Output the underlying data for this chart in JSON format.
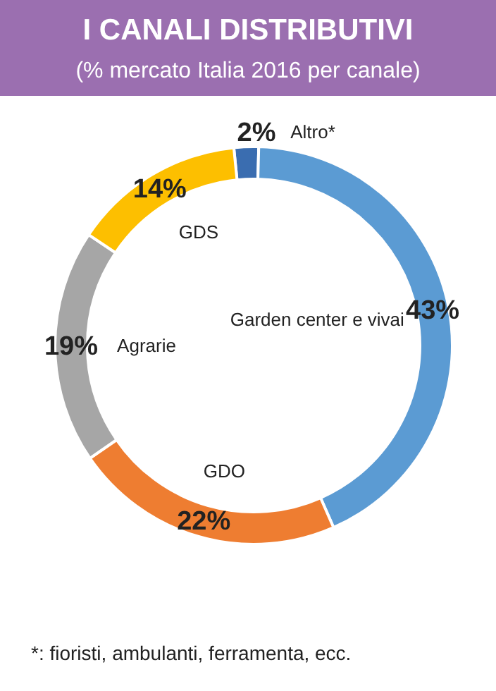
{
  "chart_data": {
    "type": "donut",
    "title": "I CANALI DISTRIBUTIVI",
    "subtitle": "(% mercato Italia 2016 per canale)",
    "categories": [
      "Altro*",
      "Garden center e vivai",
      "GDO",
      "Agrarie",
      "GDS"
    ],
    "values": [
      2,
      43,
      22,
      19,
      14
    ],
    "value_labels": [
      "2%",
      "43%",
      "22%",
      "19%",
      "14%"
    ],
    "colors": [
      "#3a6db0",
      "#5b9bd3",
      "#ee7d31",
      "#a6a6a6",
      "#fdbf00"
    ],
    "annotations": [
      "*:  fioristi, ambulanti, ferramenta, ecc."
    ]
  }
}
